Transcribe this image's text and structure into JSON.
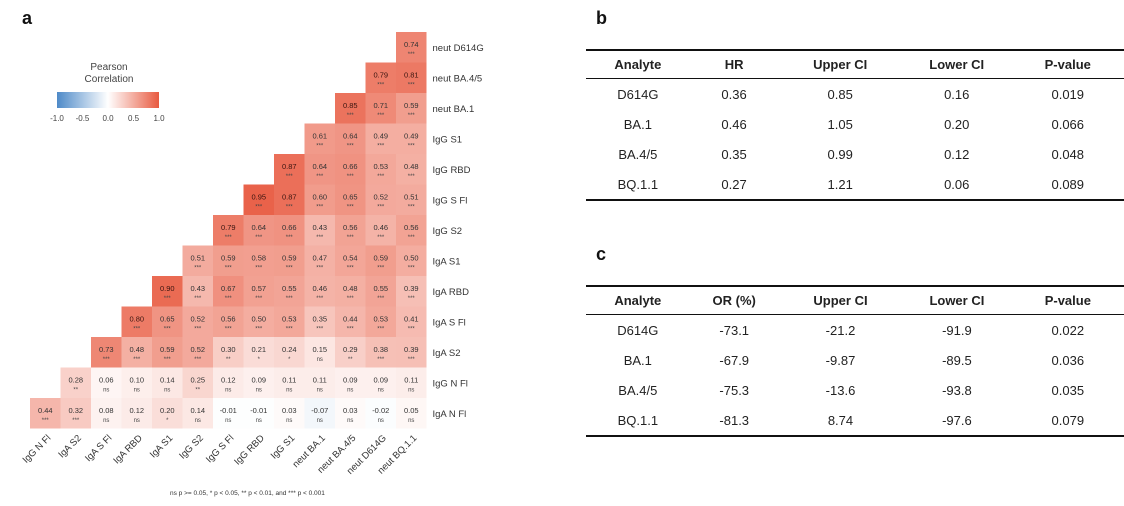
{
  "panels": {
    "a": "a",
    "b": "b",
    "c": "c"
  },
  "legend": {
    "title_line1": "Pearson",
    "title_line2": "Correlation",
    "ticks": [
      "-1.0",
      "-0.5",
      "0.0",
      "0.5",
      "1.0"
    ],
    "colors": {
      "negative": "#4e8ac8",
      "zero": "#ffffff",
      "positive": "#e85a40"
    }
  },
  "chart_data": {
    "type": "heatmap",
    "row_labels": [
      "neut D614G",
      "neut BA.4/5",
      "neut BA.1",
      "IgG S1",
      "IgG RBD",
      "IgG S Fl",
      "IgG S2",
      "IgA S1",
      "IgA RBD",
      "IgA S Fl",
      "IgA S2",
      "IgG N Fl",
      "IgA N Fl"
    ],
    "col_labels": [
      "IgG N Fl",
      "IgA S2",
      "IgA S Fl",
      "IgA RBD",
      "IgA S1",
      "IgG S2",
      "IgG S Fl",
      "IgG RBD",
      "IgG S1",
      "neut BA.1",
      "neut BA.4/5",
      "neut D614G",
      "neut BQ.1.1"
    ],
    "values": [
      [
        null,
        null,
        null,
        null,
        null,
        null,
        null,
        null,
        null,
        null,
        null,
        null,
        "0.74"
      ],
      [
        null,
        null,
        null,
        null,
        null,
        null,
        null,
        null,
        null,
        null,
        null,
        "0.79",
        "0.81"
      ],
      [
        null,
        null,
        null,
        null,
        null,
        null,
        null,
        null,
        null,
        null,
        "0.85",
        "0.71",
        "0.59"
      ],
      [
        null,
        null,
        null,
        null,
        null,
        null,
        null,
        null,
        null,
        "0.61",
        "0.64",
        "0.49",
        "0.49"
      ],
      [
        null,
        null,
        null,
        null,
        null,
        null,
        null,
        null,
        "0.87",
        "0.64",
        "0.66",
        "0.53",
        "0.48"
      ],
      [
        null,
        null,
        null,
        null,
        null,
        null,
        null,
        "0.95",
        "0.87",
        "0.60",
        "0.65",
        "0.52",
        "0.51"
      ],
      [
        null,
        null,
        null,
        null,
        null,
        null,
        "0.79",
        "0.64",
        "0.66",
        "0.43",
        "0.56",
        "0.46",
        "0.56"
      ],
      [
        null,
        null,
        null,
        null,
        null,
        "0.51",
        "0.59",
        "0.58",
        "0.59",
        "0.47",
        "0.54",
        "0.59",
        "0.50"
      ],
      [
        null,
        null,
        null,
        null,
        "0.90",
        "0.43",
        "0.67",
        "0.57",
        "0.55",
        "0.46",
        "0.48",
        "0.55",
        "0.39"
      ],
      [
        null,
        null,
        null,
        "0.80",
        "0.65",
        "0.52",
        "0.56",
        "0.50",
        "0.53",
        "0.35",
        "0.44",
        "0.53",
        "0.41"
      ],
      [
        null,
        null,
        "0.73",
        "0.48",
        "0.59",
        "0.52",
        "0.30",
        "0.21",
        "0.24",
        "0.15",
        "0.29",
        "0.38",
        "0.39"
      ],
      [
        null,
        "0.28",
        "0.06",
        "0.10",
        "0.14",
        "0.25",
        "0.12",
        "0.09",
        "0.11",
        "0.11",
        "0.09",
        "0.09",
        "0.11"
      ],
      [
        "0.44",
        "0.32",
        "0.08",
        "0.12",
        "0.20",
        "0.14",
        "-0.01",
        "-0.01",
        "0.03",
        "-0.07",
        "0.03",
        "-0.02",
        "0.05"
      ]
    ],
    "significance": [
      [
        null,
        null,
        null,
        null,
        null,
        null,
        null,
        null,
        null,
        null,
        null,
        null,
        "***"
      ],
      [
        null,
        null,
        null,
        null,
        null,
        null,
        null,
        null,
        null,
        null,
        null,
        "***",
        "***"
      ],
      [
        null,
        null,
        null,
        null,
        null,
        null,
        null,
        null,
        null,
        null,
        "***",
        "***",
        "***"
      ],
      [
        null,
        null,
        null,
        null,
        null,
        null,
        null,
        null,
        null,
        "***",
        "***",
        "***",
        "***"
      ],
      [
        null,
        null,
        null,
        null,
        null,
        null,
        null,
        null,
        "***",
        "***",
        "***",
        "***",
        "***"
      ],
      [
        null,
        null,
        null,
        null,
        null,
        null,
        null,
        "***",
        "***",
        "***",
        "***",
        "***",
        "***"
      ],
      [
        null,
        null,
        null,
        null,
        null,
        null,
        "***",
        "***",
        "***",
        "***",
        "***",
        "***",
        "***"
      ],
      [
        null,
        null,
        null,
        null,
        null,
        "***",
        "***",
        "***",
        "***",
        "***",
        "***",
        "***",
        "***"
      ],
      [
        null,
        null,
        null,
        null,
        "***",
        "***",
        "***",
        "***",
        "***",
        "***",
        "***",
        "***",
        "***"
      ],
      [
        null,
        null,
        null,
        "***",
        "***",
        "***",
        "***",
        "***",
        "***",
        "***",
        "***",
        "***",
        "***"
      ],
      [
        null,
        null,
        "***",
        "***",
        "***",
        "***",
        "**",
        "*",
        "*",
        "ns",
        "**",
        "***",
        "***"
      ],
      [
        null,
        "**",
        "ns",
        "ns",
        "ns",
        "**",
        "ns",
        "ns",
        "ns",
        "ns",
        "ns",
        "ns",
        "ns"
      ],
      [
        "***",
        "***",
        "ns",
        "ns",
        "*",
        "ns",
        "ns",
        "ns",
        "ns",
        "ns",
        "ns",
        "ns",
        "ns"
      ]
    ],
    "color_range": [
      -1.0,
      1.0
    ]
  },
  "footnote": "ns p >= 0.05, * p < 0.05, ** p < 0.01, and *** p < 0.001",
  "table_b": {
    "headers": [
      "Analyte",
      "HR",
      "Upper CI",
      "Lower CI",
      "P-value"
    ],
    "rows": [
      [
        "D614G",
        "0.36",
        "0.85",
        "0.16",
        "0.019"
      ],
      [
        "BA.1",
        "0.46",
        "1.05",
        "0.20",
        "0.066"
      ],
      [
        "BA.4/5",
        "0.35",
        "0.99",
        "0.12",
        "0.048"
      ],
      [
        "BQ.1.1",
        "0.27",
        "1.21",
        "0.06",
        "0.089"
      ]
    ]
  },
  "table_c": {
    "headers": [
      "Analyte",
      "OR (%)",
      "Upper CI",
      "Lower CI",
      "P-value"
    ],
    "rows": [
      [
        "D614G",
        "-73.1",
        "-21.2",
        "-91.9",
        "0.022"
      ],
      [
        "BA.1",
        "-67.9",
        "-9.87",
        "-89.5",
        "0.036"
      ],
      [
        "BA.4/5",
        "-75.3",
        "-13.6",
        "-93.8",
        "0.035"
      ],
      [
        "BQ.1.1",
        "-81.3",
        "8.74",
        "-97.6",
        "0.079"
      ]
    ]
  }
}
